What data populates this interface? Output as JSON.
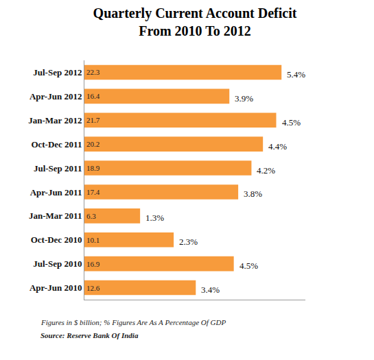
{
  "chart_data": {
    "type": "bar",
    "orientation": "horizontal",
    "title": "Quarterly Current Account Deficit\nFrom 2010 To 2012",
    "categories": [
      "Jul-Sep 2012",
      "Apr-Jun 2012",
      "Jan-Mar 2012",
      "Oct-Dec 2011",
      "Jul-Sep 2011",
      "Apr-Jun 2011",
      "Jan-Mar 2011",
      "Oct-Dec 2010",
      "Jul-Sep 2010",
      "Apr-Jun 2010"
    ],
    "values": [
      22.3,
      16.4,
      21.7,
      20.2,
      18.9,
      17.4,
      6.3,
      10.1,
      16.9,
      12.6
    ],
    "gdp_share_labels": [
      "5.4%",
      "3.9%",
      "4.5%",
      "4.4%",
      "4.2%",
      "3.8%",
      "1.3%",
      "2.3%",
      "4.5%",
      "3.4%"
    ],
    "color": "#f79b3c",
    "xlim": [
      0,
      25
    ],
    "data_labels": true,
    "tick_labels": "y",
    "grid": false,
    "notes": [
      "Figures in $ billion; % Figures Are As A Percentage Of GDP",
      "Source: Reserve Bank Of India"
    ]
  }
}
